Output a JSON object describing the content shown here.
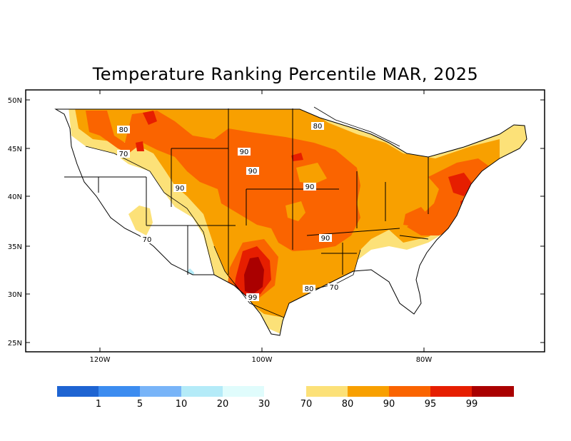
{
  "title": "Temperature Ranking Percentile MAR, 2025",
  "axes": {
    "lat_ticks": [
      "50N",
      "45N",
      "40N",
      "35N",
      "30N",
      "25N"
    ],
    "lon_ticks": [
      "120W",
      "100W",
      "80W"
    ]
  },
  "contour_labels": [
    "80",
    "70",
    "90",
    "90",
    "90",
    "90",
    "80",
    "90",
    "99",
    "80",
    "70",
    "70"
  ],
  "colorbar": {
    "cold_colors": [
      "#1e64d2",
      "#3c8cf0",
      "#78b4f8",
      "#b4ebf8",
      "#e0fcfc"
    ],
    "warm_colors": [
      "#fce178",
      "#f8a000",
      "#fa6400",
      "#e61e00",
      "#aa0000"
    ],
    "cold_labels": [
      "1",
      "5",
      "10",
      "20",
      "30"
    ],
    "warm_labels": [
      "70",
      "80",
      "90",
      "95",
      "99"
    ]
  }
}
